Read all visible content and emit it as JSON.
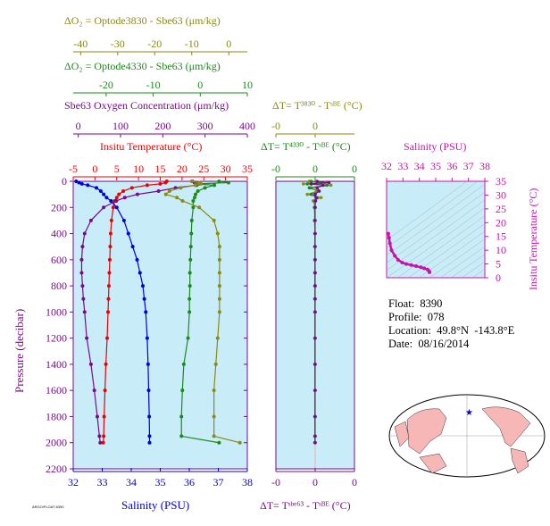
{
  "colors": {
    "olive": "#8a8a14",
    "green": "#1a8a1a",
    "purple": "#7a0a8a",
    "red": "#ee0000",
    "blue": "#0000dd",
    "magenta": "#cc11aa",
    "plot_bg": "#c8ecf8",
    "map_land": "#f7b7b7",
    "map_water": "#ffffff"
  },
  "axes": {
    "o2_3830": {
      "title": "ΔO₂ = Optode3830 - Sbe63   (μm/kg)",
      "ticks": [
        "-40",
        "-30",
        "-20",
        "-10",
        "0"
      ],
      "range": [
        -42,
        5
      ]
    },
    "o2_4330": {
      "title": "ΔO₂ = Optode4330 - Sbe63   (μm/kg)",
      "ticks": [
        "-20",
        "-10",
        "0",
        "10"
      ],
      "range": [
        -27,
        10
      ]
    },
    "oxygen": {
      "title": "Sbe63 Oxygen Concentration (μm/kg)",
      "ticks": [
        "0",
        "100",
        "200",
        "300",
        "400"
      ],
      "range": [
        -12,
        400
      ]
    },
    "temperature": {
      "title": "Insitu Temperature (°C)",
      "ticks": [
        "-5",
        "0",
        "5",
        "10",
        "15",
        "20",
        "25",
        "30",
        "35"
      ],
      "range": [
        -5,
        35
      ]
    },
    "salinity": {
      "title": "Salinity (PSU)",
      "ticks": [
        "32",
        "33",
        "34",
        "35",
        "36",
        "37",
        "38"
      ],
      "range": [
        32,
        38
      ]
    },
    "pressure": {
      "title": "Pressure (decibar)",
      "ticks": [
        "0",
        "200",
        "400",
        "600",
        "800",
        "1000",
        "1200",
        "1400",
        "1600",
        "1800",
        "2000",
        "2200"
      ],
      "range": [
        0,
        2200
      ]
    },
    "dt_3830": {
      "title": "ΔT= T³⁸³⁰ - Tˢᴮᴱ (°C)",
      "ticks": [
        "-0",
        "0"
      ],
      "range": [
        -0.8,
        0.8
      ]
    },
    "dt_4330": {
      "title": "ΔT= T⁴³³⁰ - Tˢᴮᴱ (°C)",
      "ticks": [
        "-0",
        "0",
        "0"
      ],
      "range": [
        -1,
        1
      ]
    },
    "dt_sbe63": {
      "title": "ΔT= Tˢᵇᵉ⁶³ - Tˢᴮᴱ (°C)",
      "ticks": [
        "-0",
        "0",
        "0"
      ],
      "range": [
        -1,
        1
      ]
    },
    "ts_salinity": {
      "title": "Salinity (PSU)",
      "ticks": [
        "32",
        "33",
        "34",
        "35",
        "36",
        "37",
        "38"
      ],
      "range": [
        32,
        38
      ]
    },
    "ts_temperature": {
      "title": "Insitu Temperature (°C)",
      "ticks": [
        "0",
        "5",
        "10",
        "15",
        "20",
        "25",
        "30",
        "35"
      ],
      "range": [
        0,
        35
      ]
    }
  },
  "chart_data": [
    {
      "type": "line",
      "pressure": [
        0,
        10,
        20,
        30,
        50,
        75,
        100,
        125,
        150,
        200,
        300,
        400,
        500,
        600,
        700,
        800,
        900,
        1000,
        1200,
        1400,
        1600,
        1800,
        1950,
        2000
      ],
      "series": [
        {
          "axis": "temperature",
          "color": "red",
          "values": [
            16.5,
            16.2,
            15.0,
            12.0,
            8.5,
            6.5,
            5.5,
            5.0,
            4.5,
            4.2,
            3.8,
            3.6,
            3.5,
            3.4,
            3.3,
            3.2,
            3.1,
            3.0,
            2.8,
            2.5,
            2.3,
            2.1,
            2.0,
            1.9
          ]
        },
        {
          "axis": "salinity",
          "color": "blue",
          "values": [
            32.1,
            32.2,
            32.3,
            32.5,
            32.8,
            32.95,
            33.05,
            33.15,
            33.3,
            33.5,
            33.75,
            33.9,
            34.05,
            34.2,
            34.3,
            34.4,
            34.45,
            34.5,
            34.55,
            34.58,
            34.6,
            34.62,
            34.63,
            34.63
          ]
        },
        {
          "axis": "oxygen",
          "color": "purple",
          "values": [
            270,
            275,
            285,
            280,
            230,
            190,
            140,
            110,
            90,
            60,
            30,
            15,
            10,
            8,
            8,
            10,
            12,
            15,
            20,
            30,
            38,
            45,
            50,
            52
          ]
        },
        {
          "axis": "o2_4330",
          "color": "green",
          "values": [
            4.0,
            6.0,
            -1.0,
            3.0,
            1.0,
            -0.5,
            -1.0,
            -1.2,
            -1.5,
            -1.5,
            -1.8,
            -1.9,
            -2.0,
            -2.1,
            -2.2,
            -2.2,
            -2.3,
            -2.3,
            -2.6,
            -3.5,
            -3.8,
            -4.0,
            -4.0,
            4.0
          ]
        },
        {
          "axis": "o2_3830",
          "color": "olive",
          "values": [
            -10.0,
            -8.0,
            -7.5,
            -9.0,
            -13.0,
            -16.0,
            -17.0,
            -14.0,
            -12.5,
            -8.0,
            -4.0,
            -3.0,
            -2.5,
            -2.5,
            -2.5,
            -2.5,
            -2.5,
            -2.5,
            -3.0,
            -3.5,
            -4.0,
            -4.0,
            -4.0,
            3.0
          ]
        }
      ]
    },
    {
      "type": "scatter",
      "pressure": [
        0,
        10,
        20,
        30,
        50,
        75,
        100,
        125,
        150,
        200,
        300,
        400,
        500,
        600,
        700,
        800,
        900,
        1000,
        1200,
        1400,
        1600,
        1800,
        1950,
        2000
      ],
      "series": [
        {
          "axis": "dt_sbe63",
          "color": "olive",
          "values": [
            -0.15,
            0.25,
            -0.3,
            0.4,
            -0.1,
            0.05,
            -0.2,
            0.15,
            -0.05,
            0.0,
            -0.02,
            0.0,
            -0.01,
            0.0,
            0.0,
            0.0,
            0.0,
            0.0,
            0.0,
            0.0,
            0.0,
            0.0,
            0.0,
            0.0
          ]
        },
        {
          "axis": "dt_sbe63",
          "color": "green",
          "values": [
            -0.1,
            0.15,
            -0.2,
            0.3,
            -0.15,
            0.1,
            -0.1,
            0.05,
            0.0,
            -0.02,
            -0.01,
            -0.01,
            -0.01,
            -0.01,
            -0.01,
            -0.01,
            -0.01,
            -0.01,
            -0.01,
            -0.01,
            -0.01,
            -0.01,
            -0.01,
            -0.01
          ]
        },
        {
          "axis": "dt_sbe63",
          "color": "purple",
          "values": [
            0.05,
            0.35,
            -0.1,
            0.2,
            0.05,
            0.1,
            0.0,
            0.02,
            0.01,
            0.0,
            0.0,
            0.0,
            0.0,
            0.0,
            0.0,
            0.0,
            0.0,
            0.0,
            0.0,
            0.0,
            0.0,
            0.0,
            0.0,
            0.0
          ]
        }
      ]
    },
    {
      "type": "scatter",
      "x_axis": "ts_salinity",
      "y_axis": "ts_temperature",
      "color": "magenta",
      "salinity": [
        32.1,
        32.15,
        32.2,
        32.3,
        32.5,
        32.7,
        32.95,
        33.2,
        33.5,
        33.8,
        34.1,
        34.3,
        34.5,
        34.6,
        34.62
      ],
      "temperature": [
        16.0,
        14.5,
        12.5,
        10.0,
        8.0,
        6.5,
        5.5,
        5.0,
        4.6,
        4.2,
        3.8,
        3.4,
        3.0,
        2.4,
        2.0
      ]
    }
  ],
  "info": {
    "float": "Float:  8390",
    "profile": "Profile:  078",
    "location": "Location:  49.8°N  -143.8°E",
    "date": "Date:  08/16/2014"
  },
  "map": {
    "marker": "★"
  },
  "footnote": "ARGO/FLOAT 8390"
}
